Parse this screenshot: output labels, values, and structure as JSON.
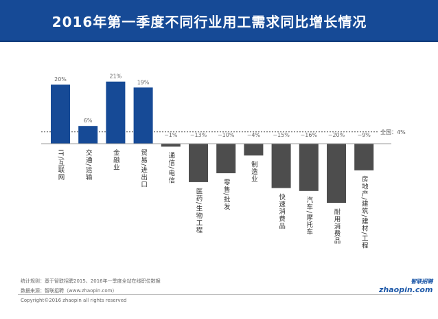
{
  "title": "2016年第一季度不同行业用工需求同比增长情况",
  "chart_data": {
    "type": "bar",
    "title": "2016年第一季度不同行业用工需求同比增长情况",
    "categories": [
      "IT/互联网",
      "交通/运输",
      "金融业",
      "贸易/进出口",
      "通信/电信",
      "医药/生物工程",
      "零售/批发",
      "制造业",
      "快速消费品",
      "汽车/摩托车",
      "耐用消费品",
      "房地产/建筑/建材/工程"
    ],
    "values": [
      20,
      6,
      21,
      19,
      -1,
      -13,
      -10,
      -4,
      -15,
      -16,
      -20,
      -9
    ],
    "data_labels": [
      "20%",
      "6%",
      "21%",
      "19%",
      "−1%",
      "−13%",
      "−10%",
      "−4%",
      "−15%",
      "−16%",
      "−20%",
      "−9%"
    ],
    "reference_line": {
      "value": 4,
      "label": "全国：4%",
      "style": "dashed"
    },
    "colors": {
      "positive": "#164a96",
      "negative": "#4d4d4d"
    },
    "grid": false,
    "legend": "none"
  },
  "footer": {
    "note": "统计规则：基于智联招聘2015、2016年一季度全站在线职位数据",
    "source": "数据来源：智联招聘（www.zhaopin.com）",
    "copyright": "Copyright©2016 zhaopin all rights reserved",
    "logo_text": "zhaopin.com",
    "logo_cn": "智联招聘"
  }
}
